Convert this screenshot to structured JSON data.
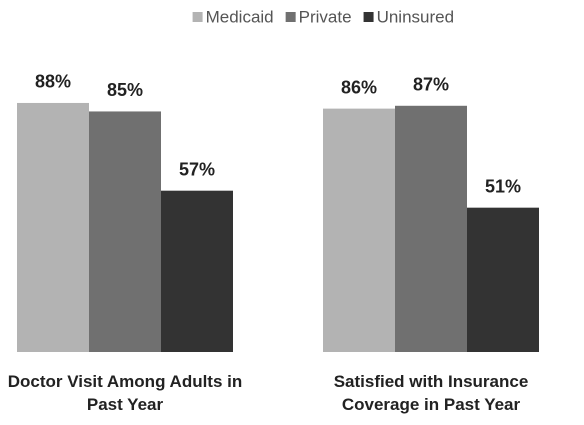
{
  "chart_data": {
    "type": "bar",
    "categories": [
      "Doctor Visit Among Adults in Past Year",
      "Satisfied with Insurance Coverage in Past Year"
    ],
    "series": [
      {
        "name": "Medicaid",
        "color": "#b3b3b3",
        "values": [
          88,
          86
        ],
        "value_labels": [
          "88%",
          "86%"
        ]
      },
      {
        "name": "Private",
        "color": "#707070",
        "values": [
          85,
          87
        ],
        "value_labels": [
          "85%",
          "87%"
        ]
      },
      {
        "name": "Uninsured",
        "color": "#333333",
        "values": [
          57,
          51
        ],
        "value_labels": [
          "57%",
          "51%"
        ]
      }
    ],
    "ylim": [
      0,
      100
    ],
    "legend": "top"
  }
}
